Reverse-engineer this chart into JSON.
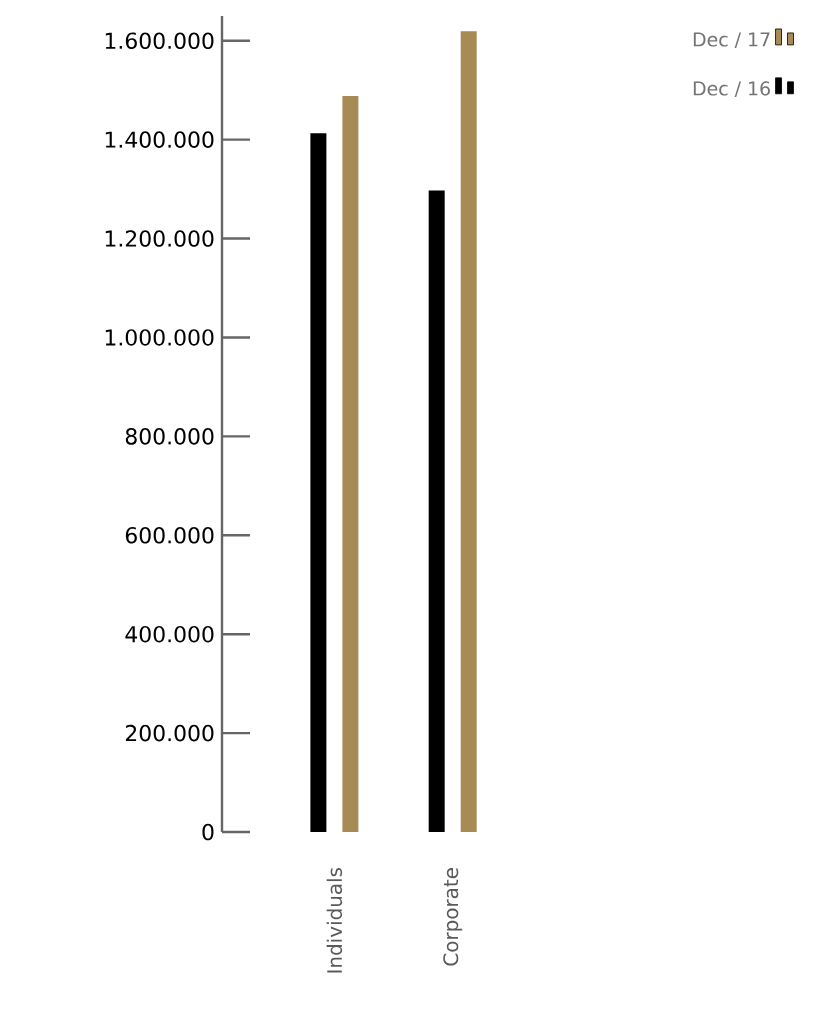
{
  "chart_data": {
    "type": "bar",
    "categories": [
      "Individuals",
      "Corporate"
    ],
    "series": [
      {
        "name": "Dec / 16",
        "color": "#000000",
        "values": [
          1413000,
          1297000
        ]
      },
      {
        "name": "Dec / 17",
        "color": "#a88a55",
        "values": [
          1488000,
          1619000
        ]
      }
    ],
    "ylim": [
      0,
      1650000
    ],
    "yticks": [
      {
        "value": 0,
        "label": "0"
      },
      {
        "value": 200000,
        "label": "200.000"
      },
      {
        "value": 400000,
        "label": "400.000"
      },
      {
        "value": 600000,
        "label": "600.000"
      },
      {
        "value": 800000,
        "label": "800.000"
      },
      {
        "value": 1000000,
        "label": "1.000.000"
      },
      {
        "value": 1200000,
        "label": "1.200.000"
      },
      {
        "value": 1400000,
        "label": "1.400.000"
      },
      {
        "value": 1600000,
        "label": "1.600.000"
      }
    ],
    "grid": false,
    "legend": "top right"
  }
}
